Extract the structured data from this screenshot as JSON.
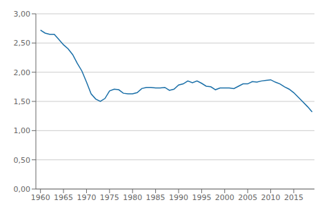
{
  "chart_data": {
    "type": "line",
    "x": [
      1960,
      1961,
      1962,
      1963,
      1964,
      1965,
      1966,
      1967,
      1968,
      1969,
      1970,
      1971,
      1972,
      1973,
      1974,
      1975,
      1976,
      1977,
      1978,
      1979,
      1980,
      1981,
      1982,
      1983,
      1984,
      1985,
      1986,
      1987,
      1988,
      1989,
      1990,
      1991,
      1992,
      1993,
      1994,
      1995,
      1996,
      1997,
      1998,
      1999,
      2000,
      2001,
      2002,
      2003,
      2004,
      2005,
      2006,
      2007,
      2008,
      2009,
      2010,
      2011,
      2012,
      2013,
      2014,
      2015,
      2016,
      2017,
      2018,
      2019
    ],
    "values": [
      2.72,
      2.67,
      2.65,
      2.65,
      2.56,
      2.47,
      2.4,
      2.3,
      2.15,
      2.02,
      1.83,
      1.63,
      1.54,
      1.5,
      1.55,
      1.68,
      1.71,
      1.7,
      1.64,
      1.63,
      1.63,
      1.65,
      1.72,
      1.74,
      1.74,
      1.73,
      1.73,
      1.74,
      1.69,
      1.71,
      1.78,
      1.8,
      1.85,
      1.82,
      1.85,
      1.81,
      1.76,
      1.75,
      1.7,
      1.73,
      1.73,
      1.73,
      1.72,
      1.76,
      1.8,
      1.8,
      1.84,
      1.83,
      1.85,
      1.86,
      1.87,
      1.83,
      1.8,
      1.75,
      1.71,
      1.65,
      1.57,
      1.49,
      1.41,
      1.32
    ],
    "color": "#1a6fa8",
    "xlim": [
      1959,
      2019.5
    ],
    "xticks": [
      1960,
      1965,
      1970,
      1975,
      1980,
      1985,
      1990,
      1995,
      2000,
      2005,
      2010,
      2015
    ],
    "ylim": [
      0.0,
      3.0
    ],
    "yticks": [
      {
        "value": 0.0,
        "label": "0,00"
      },
      {
        "value": 0.5,
        "label": "0,50"
      },
      {
        "value": 1.0,
        "label": "1,00"
      },
      {
        "value": 1.5,
        "label": "1,50"
      },
      {
        "value": 2.0,
        "label": "2,00"
      },
      {
        "value": 2.5,
        "label": "2,50"
      },
      {
        "value": 3.0,
        "label": "3,00"
      }
    ],
    "grid": "y"
  }
}
